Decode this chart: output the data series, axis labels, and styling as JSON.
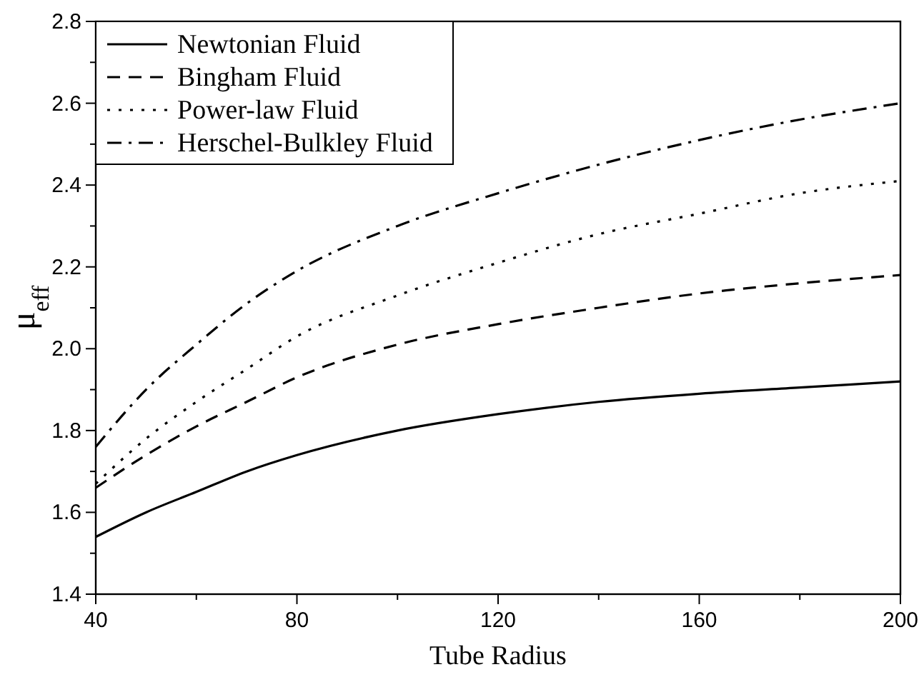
{
  "chart_data": {
    "type": "line",
    "xlabel": "Tube Radius",
    "ylabel": "μ$_{eff}$",
    "x": [
      40,
      50,
      60,
      70,
      80,
      100,
      120,
      140,
      160,
      180,
      200
    ],
    "xlim": [
      40,
      200
    ],
    "ylim": [
      1.4,
      2.8
    ],
    "xticks": [
      40,
      {
        "value": 60,
        "label": null
      },
      80,
      {
        "value": 100,
        "label": null
      },
      120,
      {
        "value": 140,
        "label": null
      },
      160,
      {
        "value": 180,
        "label": null
      },
      200
    ],
    "yticks": [
      1.4,
      {
        "value": 1.5,
        "label": null
      },
      1.6,
      {
        "value": 1.7,
        "label": null
      },
      1.8,
      {
        "value": 1.9,
        "label": null
      },
      {
        "value": 2,
        "label": "2.0"
      },
      {
        "value": 2.1,
        "label": null
      },
      2.2,
      {
        "value": 2.3,
        "label": null
      },
      2.4,
      {
        "value": 2.5,
        "label": null
      },
      2.6,
      {
        "value": 2.7,
        "label": null
      },
      2.8
    ],
    "grid": false,
    "legend": "top left",
    "marker": "none",
    "series": [
      {
        "name": "Newtonian Fluid",
        "color": "#000000",
        "line_style": "solid",
        "values": [
          1.54,
          1.6,
          1.65,
          1.7,
          1.74,
          1.8,
          1.84,
          1.87,
          1.89,
          1.905,
          1.92
        ]
      },
      {
        "name": "Bingham Fluid",
        "color": "#000000",
        "line_style": "dashed",
        "values": [
          1.66,
          1.74,
          1.81,
          1.87,
          1.93,
          2.01,
          2.06,
          2.1,
          2.135,
          2.16,
          2.18
        ]
      },
      {
        "name": "Power-law Fluid",
        "color": "#000000",
        "line_style": "dotted",
        "values": [
          1.67,
          1.78,
          1.87,
          1.95,
          2.03,
          2.13,
          2.21,
          2.28,
          2.33,
          2.38,
          2.41
        ]
      },
      {
        "name": "Herschel-Bulkley Fluid",
        "color": "#000000",
        "line_style": "dashdot",
        "values": [
          1.76,
          1.9,
          2.01,
          2.11,
          2.19,
          2.3,
          2.38,
          2.45,
          2.51,
          2.56,
          2.6
        ]
      }
    ]
  }
}
